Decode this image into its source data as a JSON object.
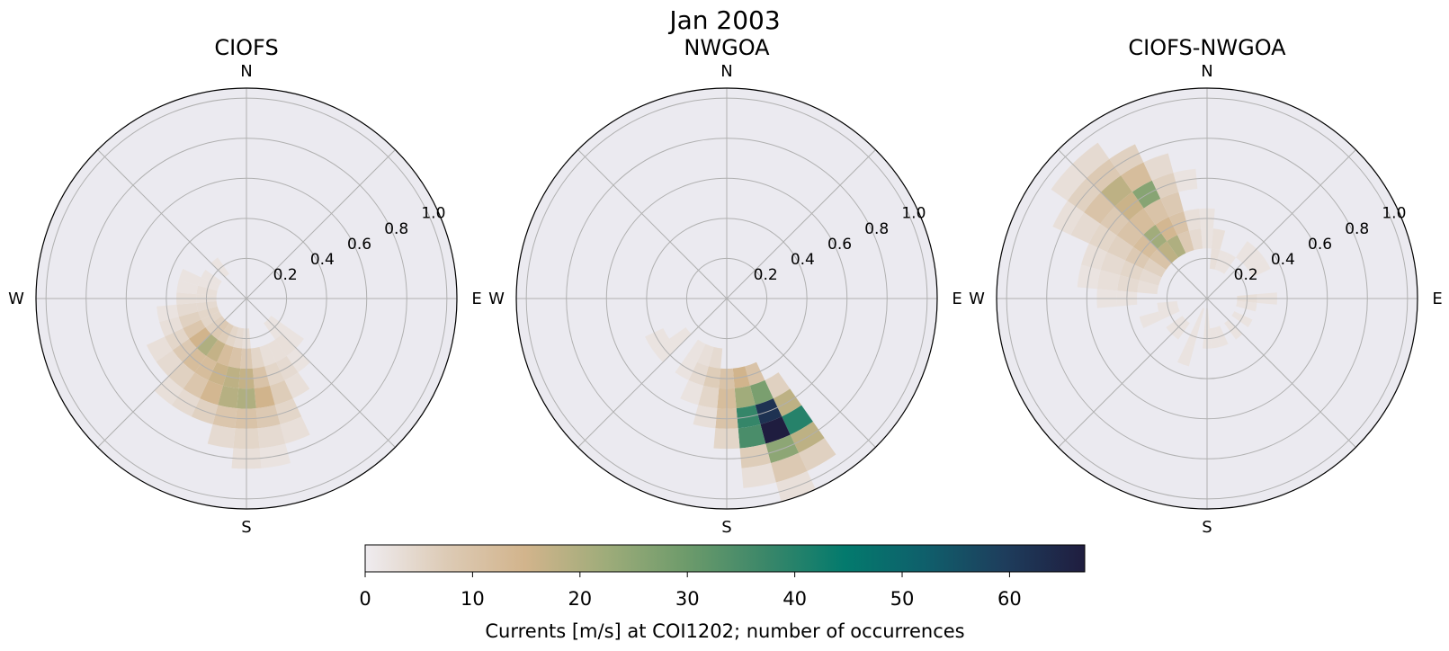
{
  "figure_title": "Jan 2003",
  "colorbar": {
    "label": "Currents [m/s] at COI1202; number of occurrences",
    "ticks": [
      "0",
      "10",
      "20",
      "30",
      "40",
      "50",
      "60"
    ],
    "tick_values": [
      0,
      10,
      20,
      30,
      40,
      50,
      60
    ],
    "vmin": 0,
    "vmax": 67,
    "colormap": "cmocean.rain",
    "stops": [
      "#efecf0",
      "#ddcbb6",
      "#d2b48c",
      "#9fac7a",
      "#6e9b6b",
      "#3b8769",
      "#037a6d",
      "#0f5f6b",
      "#1e3d5c",
      "#1f1d3f"
    ]
  },
  "chart_data": [
    {
      "type": "polar-histogram",
      "title": "CIOFS",
      "directions": [
        "N",
        "E",
        "S",
        "W"
      ],
      "radial_ticks": [
        "0.2",
        "0.4",
        "0.6",
        "0.8",
        "1.0"
      ],
      "radial_tick_values": [
        0.2,
        0.4,
        0.6,
        0.8,
        1.0
      ],
      "rlim": [
        0,
        1.05
      ],
      "grid": true,
      "bins": [
        {
          "dir_deg": 160,
          "speed": 0.3,
          "count": 3
        },
        {
          "dir_deg": 160,
          "speed": 0.4,
          "count": 5
        },
        {
          "dir_deg": 160,
          "speed": 0.5,
          "count": 7
        },
        {
          "dir_deg": 160,
          "speed": 0.6,
          "count": 5
        },
        {
          "dir_deg": 160,
          "speed": 0.7,
          "count": 3
        },
        {
          "dir_deg": 170,
          "speed": 0.3,
          "count": 5
        },
        {
          "dir_deg": 170,
          "speed": 0.4,
          "count": 10
        },
        {
          "dir_deg": 170,
          "speed": 0.5,
          "count": 15
        },
        {
          "dir_deg": 170,
          "speed": 0.6,
          "count": 8
        },
        {
          "dir_deg": 170,
          "speed": 0.7,
          "count": 4
        },
        {
          "dir_deg": 170,
          "speed": 0.8,
          "count": 2
        },
        {
          "dir_deg": 180,
          "speed": 0.2,
          "count": 3
        },
        {
          "dir_deg": 180,
          "speed": 0.3,
          "count": 8
        },
        {
          "dir_deg": 180,
          "speed": 0.4,
          "count": 17
        },
        {
          "dir_deg": 180,
          "speed": 0.5,
          "count": 20
        },
        {
          "dir_deg": 180,
          "speed": 0.6,
          "count": 10
        },
        {
          "dir_deg": 180,
          "speed": 0.7,
          "count": 5
        },
        {
          "dir_deg": 180,
          "speed": 0.8,
          "count": 3
        },
        {
          "dir_deg": 190,
          "speed": 0.2,
          "count": 4
        },
        {
          "dir_deg": 190,
          "speed": 0.3,
          "count": 10
        },
        {
          "dir_deg": 190,
          "speed": 0.4,
          "count": 18
        },
        {
          "dir_deg": 190,
          "speed": 0.5,
          "count": 19
        },
        {
          "dir_deg": 190,
          "speed": 0.6,
          "count": 9
        },
        {
          "dir_deg": 190,
          "speed": 0.7,
          "count": 4
        },
        {
          "dir_deg": 200,
          "speed": 0.2,
          "count": 5
        },
        {
          "dir_deg": 200,
          "speed": 0.3,
          "count": 12
        },
        {
          "dir_deg": 200,
          "speed": 0.4,
          "count": 16
        },
        {
          "dir_deg": 200,
          "speed": 0.5,
          "count": 14
        },
        {
          "dir_deg": 200,
          "speed": 0.6,
          "count": 6
        },
        {
          "dir_deg": 210,
          "speed": 0.2,
          "count": 7
        },
        {
          "dir_deg": 210,
          "speed": 0.3,
          "count": 17
        },
        {
          "dir_deg": 210,
          "speed": 0.4,
          "count": 12
        },
        {
          "dir_deg": 210,
          "speed": 0.5,
          "count": 9
        },
        {
          "dir_deg": 210,
          "speed": 0.6,
          "count": 4
        },
        {
          "dir_deg": 220,
          "speed": 0.2,
          "count": 8
        },
        {
          "dir_deg": 220,
          "speed": 0.3,
          "count": 20
        },
        {
          "dir_deg": 220,
          "speed": 0.4,
          "count": 12
        },
        {
          "dir_deg": 220,
          "speed": 0.5,
          "count": 6
        },
        {
          "dir_deg": 220,
          "speed": 0.6,
          "count": 3
        },
        {
          "dir_deg": 230,
          "speed": 0.2,
          "count": 6
        },
        {
          "dir_deg": 230,
          "speed": 0.3,
          "count": 15
        },
        {
          "dir_deg": 230,
          "speed": 0.4,
          "count": 8
        },
        {
          "dir_deg": 230,
          "speed": 0.5,
          "count": 4
        },
        {
          "dir_deg": 240,
          "speed": 0.2,
          "count": 5
        },
        {
          "dir_deg": 240,
          "speed": 0.3,
          "count": 9
        },
        {
          "dir_deg": 240,
          "speed": 0.4,
          "count": 5
        },
        {
          "dir_deg": 240,
          "speed": 0.5,
          "count": 3
        },
        {
          "dir_deg": 250,
          "speed": 0.2,
          "count": 5
        },
        {
          "dir_deg": 250,
          "speed": 0.3,
          "count": 6
        },
        {
          "dir_deg": 250,
          "speed": 0.4,
          "count": 3
        },
        {
          "dir_deg": 260,
          "speed": 0.2,
          "count": 4
        },
        {
          "dir_deg": 260,
          "speed": 0.3,
          "count": 4
        },
        {
          "dir_deg": 260,
          "speed": 0.4,
          "count": 2
        },
        {
          "dir_deg": 270,
          "speed": 0.2,
          "count": 3
        },
        {
          "dir_deg": 270,
          "speed": 0.3,
          "count": 3
        },
        {
          "dir_deg": 280,
          "speed": 0.2,
          "count": 3
        },
        {
          "dir_deg": 280,
          "speed": 0.3,
          "count": 2
        },
        {
          "dir_deg": 290,
          "speed": 0.2,
          "count": 2
        },
        {
          "dir_deg": 290,
          "speed": 0.3,
          "count": 2
        },
        {
          "dir_deg": 300,
          "speed": 0.2,
          "count": 2
        },
        {
          "dir_deg": 320,
          "speed": 0.2,
          "count": 2
        },
        {
          "dir_deg": 150,
          "speed": 0.3,
          "count": 3
        },
        {
          "dir_deg": 150,
          "speed": 0.4,
          "count": 4
        },
        {
          "dir_deg": 150,
          "speed": 0.5,
          "count": 3
        },
        {
          "dir_deg": 140,
          "speed": 0.2,
          "count": 2
        },
        {
          "dir_deg": 140,
          "speed": 0.3,
          "count": 3
        },
        {
          "dir_deg": 140,
          "speed": 0.4,
          "count": 2
        },
        {
          "dir_deg": 130,
          "speed": 0.2,
          "count": 2
        },
        {
          "dir_deg": 130,
          "speed": 0.3,
          "count": 2
        }
      ]
    },
    {
      "type": "polar-histogram",
      "title": "NWGOA",
      "directions": [
        "N",
        "E",
        "S",
        "W"
      ],
      "radial_ticks": [
        "0.2",
        "0.4",
        "0.6",
        "0.8",
        "1.0"
      ],
      "radial_tick_values": [
        0.2,
        0.4,
        0.6,
        0.8,
        1.0
      ],
      "rlim": [
        0,
        1.05
      ],
      "grid": true,
      "bins": [
        {
          "dir_deg": 150,
          "speed": 0.5,
          "count": 6
        },
        {
          "dir_deg": 150,
          "speed": 0.6,
          "count": 18
        },
        {
          "dir_deg": 150,
          "speed": 0.7,
          "count": 40
        },
        {
          "dir_deg": 150,
          "speed": 0.8,
          "count": 18
        },
        {
          "dir_deg": 150,
          "speed": 0.9,
          "count": 6
        },
        {
          "dir_deg": 160,
          "speed": 0.4,
          "count": 10
        },
        {
          "dir_deg": 160,
          "speed": 0.5,
          "count": 28
        },
        {
          "dir_deg": 160,
          "speed": 0.6,
          "count": 62
        },
        {
          "dir_deg": 160,
          "speed": 0.7,
          "count": 67
        },
        {
          "dir_deg": 160,
          "speed": 0.8,
          "count": 25
        },
        {
          "dir_deg": 160,
          "speed": 0.9,
          "count": 8
        },
        {
          "dir_deg": 160,
          "speed": 1.0,
          "count": 3
        },
        {
          "dir_deg": 170,
          "speed": 0.4,
          "count": 15
        },
        {
          "dir_deg": 170,
          "speed": 0.5,
          "count": 22
        },
        {
          "dir_deg": 170,
          "speed": 0.6,
          "count": 38
        },
        {
          "dir_deg": 170,
          "speed": 0.7,
          "count": 35
        },
        {
          "dir_deg": 170,
          "speed": 0.8,
          "count": 7
        },
        {
          "dir_deg": 170,
          "speed": 0.9,
          "count": 3
        },
        {
          "dir_deg": 180,
          "speed": 0.4,
          "count": 10
        },
        {
          "dir_deg": 180,
          "speed": 0.5,
          "count": 12
        },
        {
          "dir_deg": 180,
          "speed": 0.6,
          "count": 10
        },
        {
          "dir_deg": 180,
          "speed": 0.7,
          "count": 5
        },
        {
          "dir_deg": 190,
          "speed": 0.3,
          "count": 4
        },
        {
          "dir_deg": 190,
          "speed": 0.4,
          "count": 7
        },
        {
          "dir_deg": 190,
          "speed": 0.5,
          "count": 5
        },
        {
          "dir_deg": 190,
          "speed": 0.6,
          "count": 3
        },
        {
          "dir_deg": 200,
          "speed": 0.3,
          "count": 3
        },
        {
          "dir_deg": 200,
          "speed": 0.4,
          "count": 4
        },
        {
          "dir_deg": 200,
          "speed": 0.5,
          "count": 2
        },
        {
          "dir_deg": 210,
          "speed": 0.3,
          "count": 2
        },
        {
          "dir_deg": 210,
          "speed": 0.4,
          "count": 2
        },
        {
          "dir_deg": 230,
          "speed": 0.3,
          "count": 2
        },
        {
          "dir_deg": 230,
          "speed": 0.4,
          "count": 2
        },
        {
          "dir_deg": 240,
          "speed": 0.4,
          "count": 2
        }
      ]
    },
    {
      "type": "polar-histogram",
      "title": "CIOFS-NWGOA",
      "directions": [
        "N",
        "E",
        "S",
        "W"
      ],
      "radial_ticks": [
        "0.2",
        "0.4",
        "0.6",
        "0.8",
        "1.0"
      ],
      "radial_tick_values": [
        0.2,
        0.4,
        0.6,
        0.8,
        1.0
      ],
      "rlim": [
        0,
        1.05
      ],
      "grid": true,
      "bins": [
        {
          "dir_deg": 320,
          "speed": 0.3,
          "count": 18
        },
        {
          "dir_deg": 320,
          "speed": 0.4,
          "count": 22
        },
        {
          "dir_deg": 320,
          "speed": 0.5,
          "count": 12
        },
        {
          "dir_deg": 320,
          "speed": 0.6,
          "count": 16
        },
        {
          "dir_deg": 320,
          "speed": 0.7,
          "count": 18
        },
        {
          "dir_deg": 320,
          "speed": 0.8,
          "count": 8
        },
        {
          "dir_deg": 320,
          "speed": 0.9,
          "count": 4
        },
        {
          "dir_deg": 330,
          "speed": 0.3,
          "count": 20
        },
        {
          "dir_deg": 330,
          "speed": 0.4,
          "count": 14
        },
        {
          "dir_deg": 330,
          "speed": 0.5,
          "count": 10
        },
        {
          "dir_deg": 330,
          "speed": 0.6,
          "count": 26
        },
        {
          "dir_deg": 330,
          "speed": 0.7,
          "count": 12
        },
        {
          "dir_deg": 330,
          "speed": 0.8,
          "count": 6
        },
        {
          "dir_deg": 310,
          "speed": 0.3,
          "count": 10
        },
        {
          "dir_deg": 310,
          "speed": 0.4,
          "count": 12
        },
        {
          "dir_deg": 310,
          "speed": 0.5,
          "count": 10
        },
        {
          "dir_deg": 310,
          "speed": 0.6,
          "count": 8
        },
        {
          "dir_deg": 310,
          "speed": 0.7,
          "count": 10
        },
        {
          "dir_deg": 310,
          "speed": 0.8,
          "count": 6
        },
        {
          "dir_deg": 310,
          "speed": 0.9,
          "count": 3
        },
        {
          "dir_deg": 340,
          "speed": 0.3,
          "count": 8
        },
        {
          "dir_deg": 340,
          "speed": 0.4,
          "count": 10
        },
        {
          "dir_deg": 340,
          "speed": 0.5,
          "count": 8
        },
        {
          "dir_deg": 340,
          "speed": 0.6,
          "count": 6
        },
        {
          "dir_deg": 340,
          "speed": 0.7,
          "count": 4
        },
        {
          "dir_deg": 300,
          "speed": 0.3,
          "count": 6
        },
        {
          "dir_deg": 300,
          "speed": 0.4,
          "count": 8
        },
        {
          "dir_deg": 300,
          "speed": 0.5,
          "count": 6
        },
        {
          "dir_deg": 300,
          "speed": 0.6,
          "count": 5
        },
        {
          "dir_deg": 300,
          "speed": 0.7,
          "count": 4
        },
        {
          "dir_deg": 300,
          "speed": 0.8,
          "count": 3
        },
        {
          "dir_deg": 290,
          "speed": 0.3,
          "count": 4
        },
        {
          "dir_deg": 290,
          "speed": 0.4,
          "count": 5
        },
        {
          "dir_deg": 290,
          "speed": 0.5,
          "count": 4
        },
        {
          "dir_deg": 290,
          "speed": 0.6,
          "count": 3
        },
        {
          "dir_deg": 280,
          "speed": 0.3,
          "count": 3
        },
        {
          "dir_deg": 280,
          "speed": 0.4,
          "count": 4
        },
        {
          "dir_deg": 280,
          "speed": 0.5,
          "count": 3
        },
        {
          "dir_deg": 280,
          "speed": 0.6,
          "count": 2
        },
        {
          "dir_deg": 270,
          "speed": 0.4,
          "count": 2
        },
        {
          "dir_deg": 270,
          "speed": 0.5,
          "count": 2
        },
        {
          "dir_deg": 350,
          "speed": 0.3,
          "count": 4
        },
        {
          "dir_deg": 350,
          "speed": 0.4,
          "count": 3
        },
        {
          "dir_deg": 350,
          "speed": 0.6,
          "count": 2
        },
        {
          "dir_deg": 10,
          "speed": 0.2,
          "count": 3
        },
        {
          "dir_deg": 10,
          "speed": 0.3,
          "count": 3
        },
        {
          "dir_deg": 20,
          "speed": 0.2,
          "count": 2
        },
        {
          "dir_deg": 0,
          "speed": 0.3,
          "count": 2
        },
        {
          "dir_deg": 0,
          "speed": 0.4,
          "count": 2
        },
        {
          "dir_deg": 90,
          "speed": 0.2,
          "count": 3
        },
        {
          "dir_deg": 90,
          "speed": 0.3,
          "count": 2
        },
        {
          "dir_deg": 100,
          "speed": 0.2,
          "count": 2
        },
        {
          "dir_deg": 120,
          "speed": 0.2,
          "count": 2
        },
        {
          "dir_deg": 140,
          "speed": 0.2,
          "count": 2
        },
        {
          "dir_deg": 160,
          "speed": 0.2,
          "count": 2
        },
        {
          "dir_deg": 170,
          "speed": 0.2,
          "count": 2
        },
        {
          "dir_deg": 180,
          "speed": 0.1,
          "count": 2
        },
        {
          "dir_deg": 180,
          "speed": 0.2,
          "count": 2
        },
        {
          "dir_deg": 200,
          "speed": 0.1,
          "count": 2
        },
        {
          "dir_deg": 200,
          "speed": 0.2,
          "count": 2
        },
        {
          "dir_deg": 200,
          "speed": 0.3,
          "count": 2
        },
        {
          "dir_deg": 220,
          "speed": 0.2,
          "count": 2
        },
        {
          "dir_deg": 230,
          "speed": 0.2,
          "count": 2
        },
        {
          "dir_deg": 250,
          "speed": 0.2,
          "count": 2
        },
        {
          "dir_deg": 250,
          "speed": 0.3,
          "count": 2
        },
        {
          "dir_deg": 260,
          "speed": 0.2,
          "count": 2
        },
        {
          "dir_deg": 30,
          "speed": 0.2,
          "count": 2
        },
        {
          "dir_deg": 40,
          "speed": 0.3,
          "count": 2
        },
        {
          "dir_deg": 50,
          "speed": 0.3,
          "count": 2
        },
        {
          "dir_deg": 60,
          "speed": 0.3,
          "count": 2
        }
      ]
    }
  ]
}
